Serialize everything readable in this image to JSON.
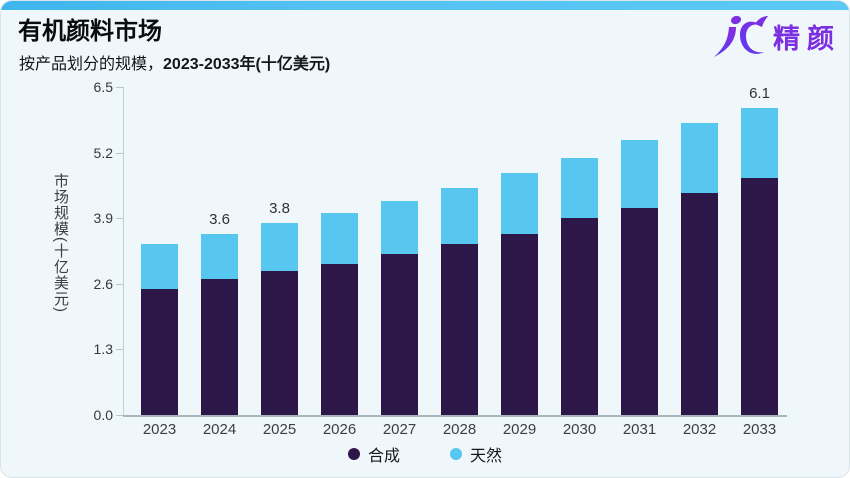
{
  "card": {
    "title": "有机颜料市场",
    "subtitle_prefix": "按产品划分的规模，",
    "subtitle_em": "2023-2033年(十亿美元)",
    "logo": {
      "text": "精颜"
    }
  },
  "chart_data": {
    "type": "bar",
    "stacked": true,
    "title": "有机颜料市场",
    "subtitle": "按产品划分的规模，2023-2033年(十亿美元)",
    "categories": [
      "2023",
      "2024",
      "2025",
      "2026",
      "2027",
      "2028",
      "2029",
      "2030",
      "2031",
      "2032",
      "2033"
    ],
    "series": [
      {
        "name": "合成",
        "color": "#2D1748",
        "values": [
          2.5,
          2.7,
          2.85,
          3.0,
          3.2,
          3.4,
          3.6,
          3.9,
          4.1,
          4.4,
          4.7
        ]
      },
      {
        "name": "天然",
        "color": "#57C7F0",
        "values": [
          0.9,
          0.9,
          0.95,
          1.0,
          1.05,
          1.1,
          1.2,
          1.2,
          1.35,
          1.4,
          1.4
        ]
      }
    ],
    "totals": [
      3.4,
      3.6,
      3.8,
      4.0,
      4.25,
      4.5,
      4.8,
      5.1,
      5.45,
      5.8,
      6.1
    ],
    "bar_labels": [
      "",
      "3.6",
      "3.8",
      "",
      "",
      "",
      "",
      "",
      "",
      "",
      "6.1"
    ],
    "xlabel": "",
    "ylabel": "市场规模(十亿美元)",
    "ylim": [
      0,
      6.5
    ],
    "yticks": [
      "0.0",
      "1.3",
      "2.6",
      "3.9",
      "5.2",
      "6.5"
    ],
    "grid": false,
    "legend_position": "bottom"
  },
  "colors": {
    "accent_strip": "#4ABCEF",
    "card_bg": "#F0F7FB",
    "synthetic": "#2D1748",
    "natural": "#57C7F0",
    "logo_purple": "#7B2FE0",
    "axis_line": "#C5CFD7"
  }
}
